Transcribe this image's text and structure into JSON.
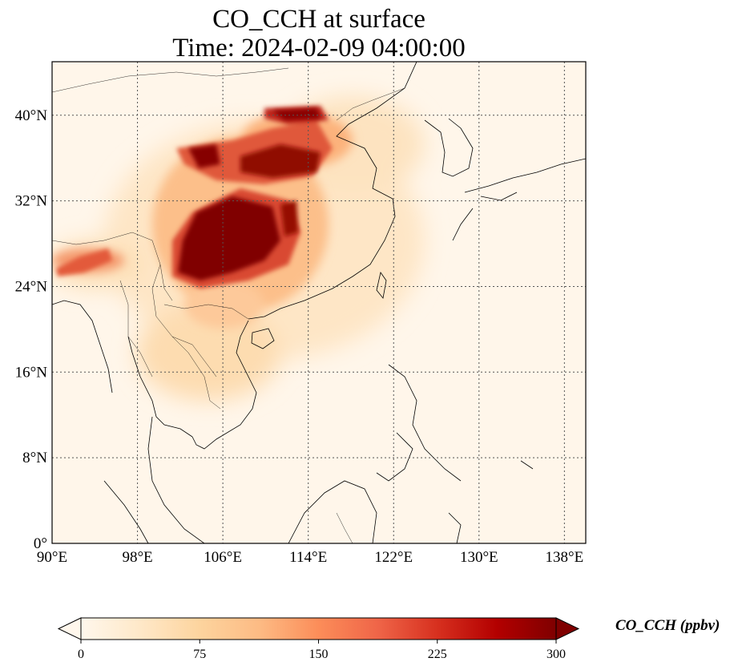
{
  "figure": {
    "title_line1": "CO_CCH at surface",
    "title_line2": "Time: 2024-02-09 04:00:00"
  },
  "map": {
    "projection": "PlateCarree",
    "lon_range": [
      90,
      140
    ],
    "lat_range": [
      0,
      45
    ],
    "x_ticks": [
      90,
      98,
      106,
      114,
      122,
      130,
      138
    ],
    "x_tick_labels": [
      "90°E",
      "98°E",
      "106°E",
      "114°E",
      "122°E",
      "130°E",
      "138°E"
    ],
    "y_ticks": [
      0,
      8,
      16,
      24,
      32,
      40
    ],
    "y_tick_labels": [
      "0°",
      "8°N",
      "16°N",
      "24°N",
      "32°N",
      "40°N"
    ],
    "gridlines": true,
    "gridline_style": "dotted",
    "features": [
      "coastlines",
      "country borders"
    ]
  },
  "colorbar": {
    "label": "CO_CCH (ppbv)",
    "min": 0,
    "max": 300,
    "ticks": [
      0,
      75,
      150,
      225,
      300
    ],
    "tick_labels": [
      "0",
      "75",
      "150",
      "225",
      "300"
    ],
    "extend": "both",
    "colormap": "OrRd",
    "stops": [
      "#fff7ec",
      "#fee8c8",
      "#fdd49e",
      "#fdbb84",
      "#fc8d59",
      "#ef6548",
      "#d7301f",
      "#b30000",
      "#7f0000"
    ]
  }
}
